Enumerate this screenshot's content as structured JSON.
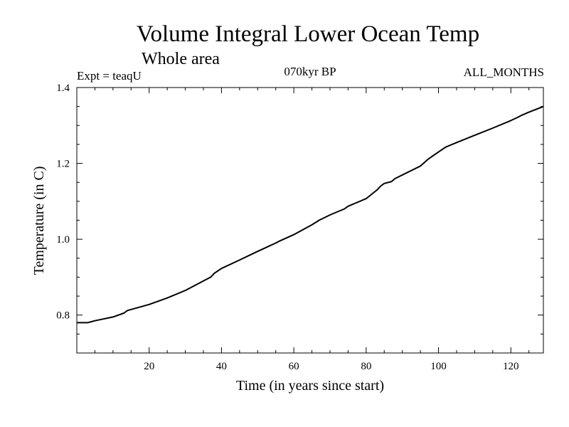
{
  "chart_data": {
    "type": "line",
    "title": "Volume Integral Lower Ocean Temp",
    "subtitle": "Whole area",
    "annotations": {
      "left": "Expt = teaqU",
      "center": "070kyr BP",
      "right": "ALL_MONTHS"
    },
    "xlabel": "Time (in years since start)",
    "ylabel": "Temperature (in C)",
    "xlim": [
      0,
      129
    ],
    "ylim": [
      0.7,
      1.4
    ],
    "x_ticks": [
      20,
      40,
      60,
      80,
      100,
      120
    ],
    "x_tick_labels": [
      "20",
      "40",
      "60",
      "80",
      "100",
      "120"
    ],
    "y_ticks": [
      0.8,
      1.0,
      1.2,
      1.4
    ],
    "y_tick_labels": [
      "0.8",
      "1.0",
      "1.2",
      "1.4"
    ],
    "grid": false,
    "series": [
      {
        "name": "teaqU",
        "color": "#000000",
        "x": [
          0,
          3,
          5,
          10,
          13,
          14,
          20,
          25,
          30,
          35,
          37,
          38,
          40,
          45,
          50,
          55,
          56,
          60,
          65,
          67,
          70,
          74,
          75,
          80,
          83,
          84,
          85,
          87,
          88,
          95,
          97,
          98,
          100,
          102,
          105,
          110,
          115,
          120,
          122,
          123,
          125,
          129
        ],
        "y": [
          0.78,
          0.78,
          0.785,
          0.795,
          0.805,
          0.812,
          0.828,
          0.845,
          0.865,
          0.89,
          0.9,
          0.91,
          0.923,
          0.945,
          0.968,
          0.99,
          0.995,
          1.012,
          1.038,
          1.05,
          1.064,
          1.08,
          1.087,
          1.107,
          1.13,
          1.14,
          1.147,
          1.152,
          1.16,
          1.193,
          1.21,
          1.217,
          1.23,
          1.243,
          1.255,
          1.274,
          1.293,
          1.313,
          1.322,
          1.327,
          1.335,
          1.35
        ]
      }
    ]
  }
}
